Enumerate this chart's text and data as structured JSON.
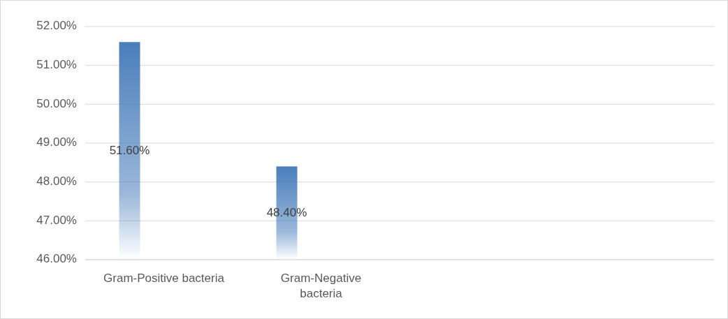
{
  "chart_data": {
    "type": "bar",
    "categories": [
      "Gram-Positive bacteria",
      "Gram-Negative bacteria",
      null,
      null
    ],
    "values": [
      51.6,
      48.4,
      null,
      null
    ],
    "value_labels": [
      "51.60%",
      "48.40%",
      null,
      null
    ],
    "color": "#4a7ebb",
    "ylim": [
      46,
      52
    ],
    "yticks": [
      {
        "value": 46,
        "label": "46.00%"
      },
      {
        "value": 47,
        "label": "47.00%"
      },
      {
        "value": 48,
        "label": "48.00%"
      },
      {
        "value": 49,
        "label": "49.00%"
      },
      {
        "value": 50,
        "label": "50.00%"
      },
      {
        "value": 51,
        "label": "51.00%"
      },
      {
        "value": 52,
        "label": "52.00%"
      }
    ],
    "grid": "y"
  }
}
